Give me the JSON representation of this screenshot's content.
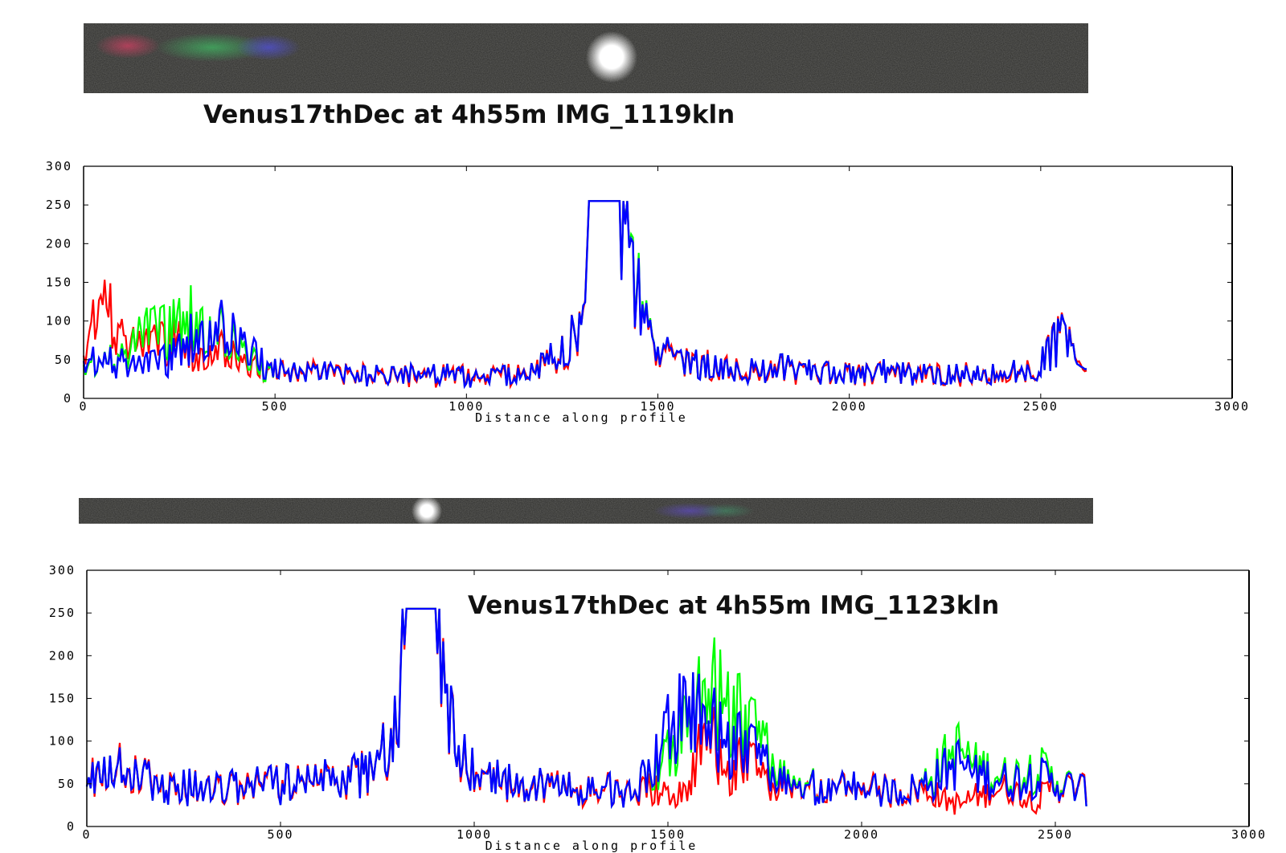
{
  "colors": {
    "red": "#ff0000",
    "green": "#00ff00",
    "blue": "#0000ff",
    "axis": "#000000",
    "strip_bg": "#2a2a2a"
  },
  "chart_data": [
    {
      "type": "line",
      "title": "Venus17thDec at 4h55m IMG_1119kln",
      "xlabel": "Distance along profile",
      "ylabel": "",
      "xlim": [
        0,
        3000
      ],
      "ylim": [
        0,
        300
      ],
      "xticks": [
        "0",
        "500",
        "1000",
        "1500",
        "2000",
        "2500",
        "3000"
      ],
      "yticks": [
        "0",
        "50",
        "100",
        "150",
        "200",
        "250",
        "300"
      ],
      "grid": false,
      "series": [
        {
          "color": "#ff0000",
          "x": [
            0,
            50,
            100,
            150,
            200,
            250,
            300,
            350,
            400,
            450,
            500,
            600,
            700,
            800,
            900,
            1000,
            1100,
            1200,
            1250,
            1300,
            1320,
            1350,
            1400,
            1420,
            1450,
            1500,
            1600,
            1700,
            1800,
            1900,
            2000,
            2100,
            2200,
            2300,
            2400,
            2500,
            2550,
            2600,
            2620
          ],
          "y": [
            60,
            130,
            80,
            60,
            70,
            75,
            55,
            70,
            50,
            40,
            35,
            35,
            30,
            30,
            30,
            30,
            30,
            40,
            60,
            100,
            255,
            255,
            255,
            200,
            130,
            70,
            45,
            35,
            40,
            35,
            30,
            35,
            30,
            30,
            35,
            40,
            85,
            45,
            35
          ]
        },
        {
          "color": "#00ff00",
          "x": [
            0,
            50,
            100,
            150,
            200,
            250,
            300,
            350,
            400,
            450,
            500,
            600,
            700,
            800,
            900,
            1000,
            1100,
            1200,
            1250,
            1300,
            1320,
            1350,
            1400,
            1420,
            1450,
            1500,
            1600,
            1700,
            1800,
            1900,
            2000,
            2100,
            2200,
            2300,
            2400,
            2500,
            2550,
            2600,
            2620
          ],
          "y": [
            45,
            45,
            55,
            80,
            85,
            100,
            105,
            90,
            70,
            45,
            35,
            35,
            30,
            30,
            30,
            30,
            30,
            40,
            60,
            100,
            255,
            255,
            255,
            205,
            135,
            70,
            45,
            35,
            40,
            35,
            30,
            35,
            30,
            30,
            35,
            40,
            85,
            45,
            35
          ]
        },
        {
          "color": "#0000ff",
          "x": [
            0,
            50,
            100,
            150,
            200,
            250,
            300,
            350,
            400,
            450,
            500,
            600,
            700,
            800,
            900,
            1000,
            1100,
            1200,
            1250,
            1300,
            1320,
            1350,
            1400,
            1420,
            1450,
            1500,
            1600,
            1700,
            1800,
            1900,
            2000,
            2100,
            2200,
            2300,
            2400,
            2500,
            2550,
            2600,
            2620
          ],
          "y": [
            50,
            45,
            50,
            40,
            45,
            65,
            85,
            95,
            80,
            55,
            35,
            35,
            30,
            30,
            30,
            30,
            30,
            40,
            60,
            100,
            255,
            255,
            255,
            200,
            130,
            70,
            45,
            35,
            40,
            35,
            30,
            35,
            30,
            30,
            35,
            40,
            85,
            45,
            35
          ]
        }
      ]
    },
    {
      "type": "line",
      "title": "Venus17thDec at 4h55m IMG_1123kln",
      "xlabel": "Distance along profile",
      "ylabel": "",
      "xlim": [
        0,
        3000
      ],
      "ylim": [
        0,
        300
      ],
      "xticks": [
        "0",
        "500",
        "1000",
        "1500",
        "2000",
        "2500",
        "3000"
      ],
      "yticks": [
        "0",
        "50",
        "100",
        "150",
        "200",
        "250",
        "300"
      ],
      "grid": false,
      "series": [
        {
          "color": "#ff0000",
          "x": [
            0,
            50,
            100,
            150,
            200,
            300,
            400,
            500,
            600,
            700,
            750,
            800,
            830,
            850,
            900,
            930,
            950,
            1000,
            1100,
            1200,
            1300,
            1400,
            1450,
            1500,
            1550,
            1600,
            1650,
            1700,
            1750,
            1800,
            1900,
            2000,
            2100,
            2150,
            2200,
            2250,
            2300,
            2350,
            2400,
            2450,
            2500,
            2550,
            2580
          ],
          "y": [
            60,
            70,
            65,
            55,
            50,
            45,
            45,
            50,
            55,
            60,
            70,
            120,
            255,
            255,
            255,
            150,
            90,
            60,
            50,
            45,
            45,
            40,
            45,
            35,
            40,
            120,
            60,
            80,
            50,
            45,
            45,
            45,
            40,
            45,
            35,
            25,
            35,
            45,
            40,
            30,
            50,
            45,
            45
          ]
        },
        {
          "color": "#00ff00",
          "x": [
            0,
            50,
            100,
            150,
            200,
            300,
            400,
            500,
            600,
            700,
            750,
            800,
            830,
            850,
            900,
            930,
            950,
            1000,
            1100,
            1200,
            1300,
            1400,
            1450,
            1500,
            1550,
            1600,
            1650,
            1700,
            1750,
            1800,
            1900,
            2000,
            2100,
            2150,
            2200,
            2250,
            2300,
            2350,
            2400,
            2450,
            2500,
            2550,
            2580
          ],
          "y": [
            60,
            70,
            65,
            55,
            50,
            45,
            45,
            50,
            55,
            60,
            70,
            120,
            255,
            255,
            255,
            150,
            90,
            60,
            50,
            45,
            45,
            40,
            60,
            80,
            130,
            160,
            150,
            120,
            90,
            55,
            45,
            45,
            40,
            45,
            70,
            90,
            70,
            60,
            60,
            70,
            55,
            45,
            45
          ]
        },
        {
          "color": "#0000ff",
          "x": [
            0,
            50,
            100,
            150,
            200,
            300,
            400,
            500,
            600,
            700,
            750,
            800,
            830,
            850,
            900,
            930,
            950,
            1000,
            1100,
            1200,
            1300,
            1400,
            1450,
            1500,
            1550,
            1600,
            1650,
            1700,
            1750,
            1800,
            1900,
            2000,
            2100,
            2150,
            2200,
            2250,
            2300,
            2350,
            2400,
            2450,
            2500,
            2550,
            2580
          ],
          "y": [
            60,
            70,
            65,
            55,
            50,
            45,
            45,
            50,
            55,
            60,
            70,
            120,
            255,
            255,
            255,
            150,
            90,
            60,
            50,
            45,
            45,
            40,
            60,
            110,
            145,
            125,
            100,
            95,
            70,
            50,
            45,
            45,
            40,
            45,
            60,
            75,
            60,
            55,
            55,
            60,
            50,
            45,
            45
          ]
        }
      ]
    }
  ]
}
